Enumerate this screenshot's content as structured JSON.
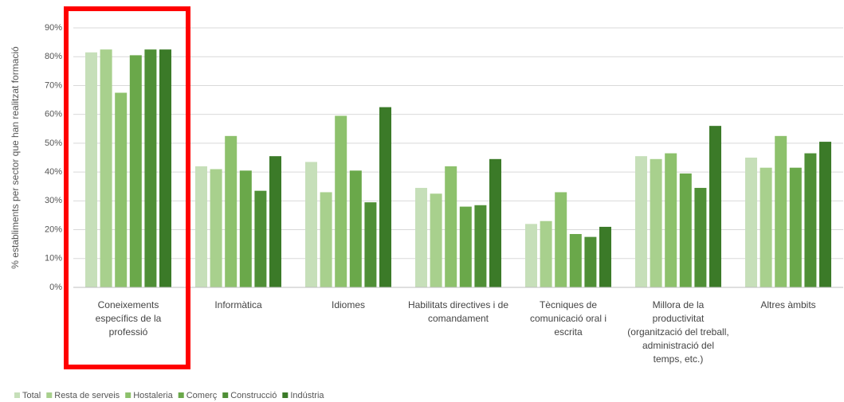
{
  "chart_data": {
    "type": "bar",
    "y_label": "% establiments per sector que han realitzat formació",
    "categories": [
      "Coneixements específics de la professió",
      "Informàtica",
      "Idiomes",
      "Habilitats directives i de comandament",
      "Tècniques de comunicació oral i escrita",
      "Millora de la productivitat (organització del treball, administració del temps, etc.)",
      "Altres àmbits"
    ],
    "series": [
      {
        "name": "Total",
        "color": "#c6dfb9",
        "values": [
          81.5,
          42,
          43.5,
          34.5,
          22,
          45.5,
          45
        ]
      },
      {
        "name": "Resta de serveis",
        "color": "#a8d08d",
        "values": [
          82.5,
          41,
          33,
          32.5,
          23,
          44.5,
          41.5
        ]
      },
      {
        "name": "Hostaleria",
        "color": "#8dc16c",
        "values": [
          67.5,
          52.5,
          59.5,
          42,
          33,
          46.5,
          52.5
        ]
      },
      {
        "name": "Comerç",
        "color": "#6aa84a",
        "values": [
          80.5,
          40.5,
          40.5,
          28,
          18.5,
          39.5,
          41.5
        ]
      },
      {
        "name": "Construcció",
        "color": "#4f8f36",
        "values": [
          82.5,
          33.5,
          29.5,
          28.5,
          17.5,
          34.5,
          46.5
        ]
      },
      {
        "name": "Indústria",
        "color": "#3b7a28",
        "values": [
          82.5,
          45.5,
          62.5,
          44.5,
          21,
          56,
          50.5
        ]
      }
    ],
    "ylim": [
      0,
      90
    ],
    "yticks": [
      {
        "value": 0,
        "label": "0%"
      },
      {
        "value": 10,
        "label": "10%"
      },
      {
        "value": 20,
        "label": "20%"
      },
      {
        "value": 30,
        "label": "30%"
      },
      {
        "value": 40,
        "label": "40%"
      },
      {
        "value": 50,
        "label": "50%"
      },
      {
        "value": 60,
        "label": "60%"
      },
      {
        "value": 70,
        "label": "70%"
      },
      {
        "value": 80,
        "label": "80%"
      },
      {
        "value": 90,
        "label": "90%"
      }
    ],
    "grid": true,
    "legend": "bottom"
  }
}
